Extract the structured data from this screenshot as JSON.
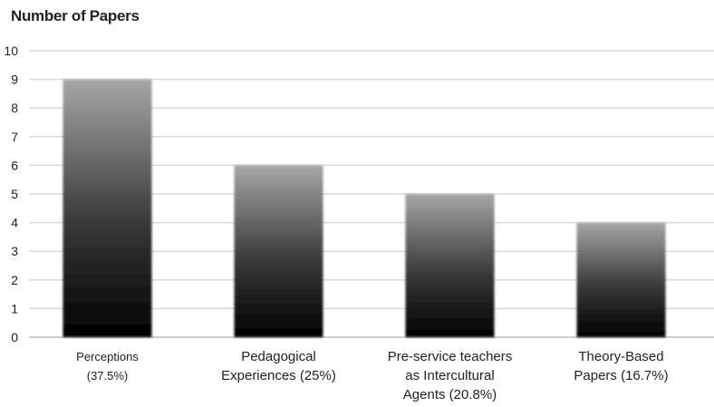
{
  "chart_data": {
    "type": "bar",
    "title": "Number of Papers",
    "categories": [
      [
        "Perceptions",
        "(37.5%)"
      ],
      [
        "Pedagogical",
        "Experiences (25%)"
      ],
      [
        "Pre-service teachers",
        "as Intercultural",
        "Agents (20.8%)"
      ],
      [
        "Theory-Based",
        "Papers (16.7%)"
      ]
    ],
    "values": [
      9,
      6,
      5,
      4
    ],
    "ylim": [
      0,
      10
    ],
    "yticks": [
      0,
      1,
      2,
      3,
      4,
      5,
      6,
      7,
      8,
      9,
      10
    ],
    "grid": true,
    "bar_gradient": [
      "#000000",
      "#a6a6a6"
    ]
  }
}
